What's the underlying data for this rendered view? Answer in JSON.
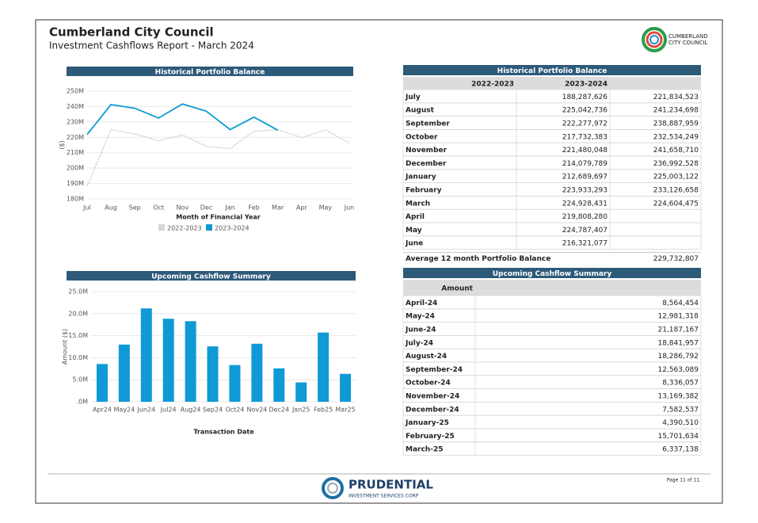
{
  "header": {
    "title": "Cumberland City Council",
    "subtitle": "Investment Cashflows Report - March 2024",
    "logo_text": [
      "CUMBERLAND",
      "CITY COUNCIL"
    ]
  },
  "chart_data": [
    {
      "type": "line",
      "title": "Historical Portfolio Balance",
      "x_label": "Month of Financial Year",
      "y_label": "($)",
      "categories": [
        "Jul",
        "Aug",
        "Sep",
        "Oct",
        "Nov",
        "Dec",
        "Jan",
        "Feb",
        "Mar",
        "Apr",
        "May",
        "Jun"
      ],
      "series": [
        {
          "name": "2022-2023",
          "color": "#d6d6d6",
          "values": [
            188287626,
            225042736,
            222277972,
            217732383,
            221480048,
            214079789,
            212689697,
            223933293,
            224928431,
            219808280,
            224787407,
            216321077
          ]
        },
        {
          "name": "2023-2024",
          "color": "#0f9ad6",
          "values": [
            221834523,
            241234698,
            238887959,
            232534249,
            241658710,
            236992528,
            225003122,
            233126658,
            224604475,
            null,
            null,
            null
          ]
        }
      ],
      "ylim": [
        180000000,
        250000000
      ],
      "yticks": [
        {
          "value": 180000000,
          "label": "180M"
        },
        {
          "value": 190000000,
          "label": "190M"
        },
        {
          "value": 200000000,
          "label": "200M"
        },
        {
          "value": 210000000,
          "label": "210M"
        },
        {
          "value": 220000000,
          "label": "220M"
        },
        {
          "value": 230000000,
          "label": "230M"
        },
        {
          "value": 240000000,
          "label": "240M"
        },
        {
          "value": 250000000,
          "label": "250M"
        }
      ],
      "grid": true,
      "legend": "bottom"
    },
    {
      "type": "bar",
      "title": "Upcoming Cashflow Summary",
      "x_label": "Transaction Date",
      "y_label": "Amount ($)",
      "categories": [
        "Apr24",
        "May24",
        "Jun24",
        "Jul24",
        "Aug24",
        "Sep24",
        "Oct24",
        "Nov24",
        "Dec24",
        "Jan25",
        "Feb25",
        "Mar25"
      ],
      "values": [
        8564454,
        12981318,
        21187167,
        18841957,
        18286792,
        12563089,
        8336057,
        13169382,
        7582537,
        4390510,
        15701634,
        6337138
      ],
      "color": "#0f9ad6",
      "ylim": [
        0,
        25000000
      ],
      "yticks": [
        {
          "value": 0,
          "label": ".0M"
        },
        {
          "value": 5000000,
          "label": "5.0M"
        },
        {
          "value": 10000000,
          "label": "10.0M"
        },
        {
          "value": 15000000,
          "label": "15.0M"
        },
        {
          "value": 20000000,
          "label": "20.0M"
        },
        {
          "value": 25000000,
          "label": "25.0M"
        }
      ],
      "grid": true
    }
  ],
  "tables": [
    {
      "title": "Historical Portfolio Balance",
      "columns": [
        "2022-2023",
        "2023-2024"
      ],
      "rows": [
        [
          "July",
          "188,287,626",
          "221,834,523"
        ],
        [
          "August",
          "225,042,736",
          "241,234,698"
        ],
        [
          "September",
          "222,277,972",
          "238,887,959"
        ],
        [
          "October",
          "217,732,383",
          "232,534,249"
        ],
        [
          "November",
          "221,480,048",
          "241,658,710"
        ],
        [
          "December",
          "214,079,789",
          "236,992,528"
        ],
        [
          "January",
          "212,689,697",
          "225,003,122"
        ],
        [
          "February",
          "223,933,293",
          "233,126,658"
        ],
        [
          "March",
          "224,928,431",
          "224,604,475"
        ],
        [
          "April",
          "219,808,280"
        ],
        [
          "May",
          "224,787,407"
        ],
        [
          "June",
          "216,321,077"
        ]
      ],
      "footer": [
        "Average 12 month Portfolio Balance",
        "229,732,807"
      ]
    },
    {
      "title": "Upcoming Cashflow Summary",
      "columns": [
        "Amount"
      ],
      "rows": [
        [
          "April-24",
          "8,564,454"
        ],
        [
          "May-24",
          "12,981,318"
        ],
        [
          "June-24",
          "21,187,167"
        ],
        [
          "July-24",
          "18,841,957"
        ],
        [
          "August-24",
          "18,286,792"
        ],
        [
          "September-24",
          "12,563,089"
        ],
        [
          "October-24",
          "8,336,057"
        ],
        [
          "November-24",
          "13,169,382"
        ],
        [
          "December-24",
          "7,582,537"
        ],
        [
          "January-25",
          "4,390,510"
        ],
        [
          "February-25",
          "15,701,634"
        ],
        [
          "March-25",
          "6,337,138"
        ]
      ]
    }
  ],
  "footer": {
    "brand": "PRUDENTIAL",
    "brand_sub": "INVESTMENT SERVICES CORP",
    "page": "Page 11 of 11."
  }
}
